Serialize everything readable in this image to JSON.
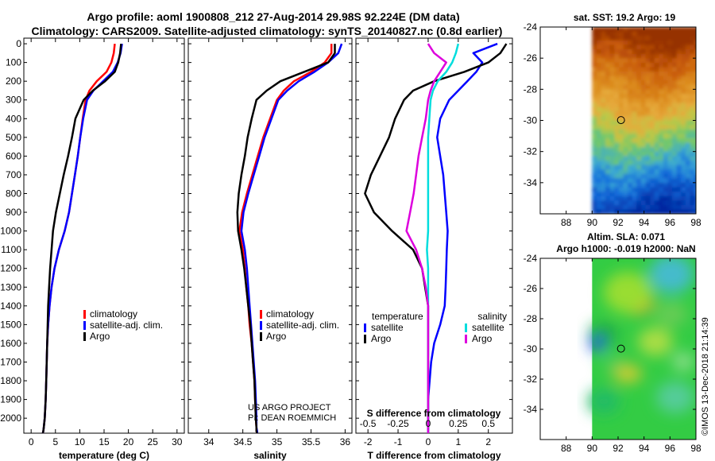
{
  "title": {
    "line1": "Argo profile: aoml 1900808_212 27-Aug-2014 29.98S 92.224E (DM data)",
    "line2": "Climatology: CARS2009. Satellite-adjusted climatology: synTS_20140827.nc (0.8d earlier)"
  },
  "credits": {
    "line1": "US ARGO PROJECT",
    "line2": "PI: DEAN ROEMMICH",
    "imos": "©IMOS 13-Dec-2018 21:14:39"
  },
  "colors": {
    "climatology": "#ff0000",
    "satellite": "#0000ff",
    "argo": "#000000",
    "sat_salinity": "#00dddd",
    "argo_salinity": "#dd00dd"
  },
  "depth_axis": {
    "ticks": [
      0,
      100,
      200,
      300,
      400,
      500,
      600,
      700,
      800,
      900,
      1000,
      1100,
      1200,
      1300,
      1400,
      1500,
      1600,
      1700,
      1800,
      1900,
      2000
    ],
    "range": [
      -30,
      2080
    ]
  },
  "chart_data": [
    {
      "type": "line",
      "id": "temperature",
      "xlabel": "temperature (deg C)",
      "xlim": [
        -1.5,
        31.5
      ],
      "xticks": [
        0,
        5,
        10,
        15,
        20,
        25,
        30
      ],
      "legend": {
        "placement": "lower-middle",
        "items": [
          "climatology",
          "satellite-adj. clim.",
          "Argo"
        ]
      },
      "series": [
        {
          "name": "climatology",
          "color_key": "climatology",
          "x": [
            17.2,
            17.0,
            16.5,
            15.5,
            13.5,
            12.0,
            11.2,
            10.6,
            10.1,
            9.6,
            9.0,
            8.4,
            7.8,
            6.9,
            5.7,
            4.8,
            4.2,
            3.8,
            3.5,
            3.3,
            3.2,
            3.1,
            3.0,
            2.8,
            2.6,
            2.5,
            2.4
          ],
          "y": [
            0,
            50,
            100,
            150,
            200,
            250,
            300,
            400,
            500,
            600,
            700,
            800,
            900,
            1000,
            1100,
            1200,
            1300,
            1400,
            1500,
            1600,
            1700,
            1800,
            1900,
            2000,
            2050,
            2070,
            2080
          ]
        },
        {
          "name": "satellite-adj. clim.",
          "color_key": "satellite",
          "x": [
            18.7,
            18.4,
            17.8,
            16.8,
            14.8,
            12.8,
            11.5,
            10.7,
            10.1,
            9.6,
            9.0,
            8.4,
            7.8,
            6.9,
            5.7,
            4.8,
            4.2,
            3.8,
            3.5,
            3.3,
            3.2,
            3.1,
            3.0,
            2.8,
            2.6,
            2.5,
            2.4
          ],
          "y": [
            0,
            50,
            100,
            150,
            200,
            250,
            300,
            400,
            500,
            600,
            700,
            800,
            900,
            1000,
            1100,
            1200,
            1300,
            1400,
            1500,
            1600,
            1700,
            1800,
            1900,
            2000,
            2050,
            2070,
            2080
          ]
        },
        {
          "name": "Argo",
          "color_key": "argo",
          "x": [
            18.5,
            18.3,
            17.9,
            17.2,
            15.2,
            12.7,
            10.8,
            9.1,
            8.4,
            7.6,
            6.7,
            5.9,
            5.1,
            4.5,
            4.2,
            3.9,
            3.7,
            3.5,
            3.4,
            3.3,
            3.2,
            3.1,
            3.0,
            2.8,
            2.6,
            2.5,
            2.4
          ],
          "y": [
            0,
            50,
            100,
            150,
            200,
            250,
            300,
            400,
            500,
            600,
            700,
            800,
            900,
            1000,
            1100,
            1200,
            1300,
            1400,
            1500,
            1600,
            1700,
            1800,
            1900,
            2000,
            2050,
            2070,
            2080
          ]
        }
      ]
    },
    {
      "type": "line",
      "id": "salinity",
      "xlabel": "salinity",
      "xlim": [
        33.7,
        36.1
      ],
      "xticks": [
        34,
        34.5,
        35,
        35.5,
        36
      ],
      "legend": {
        "placement": "lower-middle",
        "items": [
          "climatology",
          "satellite-adj. clim.",
          "Argo"
        ]
      },
      "series": [
        {
          "name": "climatology",
          "color_key": "climatology",
          "x": [
            35.8,
            35.8,
            35.7,
            35.5,
            35.25,
            35.1,
            35.0,
            34.9,
            34.8,
            34.72,
            34.64,
            34.56,
            34.49,
            34.45,
            34.5,
            34.53,
            34.55,
            34.58,
            34.6,
            34.63,
            34.65,
            34.67,
            34.68,
            34.69,
            34.7,
            34.7,
            34.71
          ],
          "y": [
            0,
            50,
            100,
            150,
            200,
            250,
            300,
            400,
            500,
            600,
            700,
            800,
            900,
            1000,
            1100,
            1200,
            1300,
            1400,
            1500,
            1600,
            1700,
            1800,
            1900,
            2000,
            2050,
            2070,
            2080
          ]
        },
        {
          "name": "satellite-adj. clim.",
          "color_key": "satellite",
          "x": [
            35.95,
            35.9,
            35.75,
            35.55,
            35.32,
            35.15,
            35.02,
            34.92,
            34.82,
            34.74,
            34.66,
            34.58,
            34.51,
            34.48,
            34.53,
            34.56,
            34.58,
            34.6,
            34.62,
            34.64,
            34.66,
            34.68,
            34.69,
            34.7,
            34.7,
            34.71,
            34.71
          ],
          "y": [
            0,
            50,
            100,
            150,
            200,
            250,
            300,
            400,
            500,
            600,
            700,
            800,
            900,
            1000,
            1100,
            1200,
            1300,
            1400,
            1500,
            1600,
            1700,
            1800,
            1900,
            2000,
            2050,
            2070,
            2080
          ]
        },
        {
          "name": "Argo",
          "color_key": "argo",
          "x": [
            35.85,
            35.85,
            35.75,
            35.4,
            35.05,
            34.85,
            34.7,
            34.63,
            34.57,
            34.53,
            34.48,
            34.44,
            34.42,
            34.43,
            34.48,
            34.52,
            34.55,
            34.58,
            34.61,
            34.63,
            34.65,
            34.67,
            34.68,
            34.69,
            34.7,
            34.7,
            34.71
          ],
          "y": [
            0,
            50,
            100,
            150,
            200,
            250,
            300,
            400,
            500,
            600,
            700,
            800,
            900,
            1000,
            1100,
            1200,
            1300,
            1400,
            1500,
            1600,
            1700,
            1800,
            1900,
            2000,
            2050,
            2070,
            2080
          ]
        }
      ]
    },
    {
      "type": "line",
      "id": "difference",
      "xlabel": "T difference from climatology",
      "xlabel_top": "S difference from climatology",
      "xlim": [
        -2.4,
        2.8
      ],
      "xticks": [
        -2,
        -1,
        0,
        1,
        2
      ],
      "xticks_top": [
        -0.5,
        -0.25,
        0,
        0.25,
        0.5
      ],
      "top_scale": 4,
      "legend_left": {
        "heading": "temperature",
        "items": [
          "satellite",
          "Argo"
        ]
      },
      "legend_right": {
        "heading": "salinity",
        "items": [
          "satellite",
          "Argo"
        ]
      },
      "series": [
        {
          "name": "temperature satellite",
          "color_key": "satellite",
          "x": [
            2.3,
            1.5,
            1.8,
            1.6,
            1.3,
            1.0,
            0.7,
            0.4,
            0.3,
            0.4,
            0.5,
            0.55,
            0.6,
            0.65,
            0.62,
            0.6,
            0.58,
            0.55,
            0.4,
            0.2,
            0.1,
            0.05,
            0.0,
            0.0,
            0.0,
            0.0,
            0.0
          ],
          "y": [
            0,
            50,
            100,
            150,
            200,
            250,
            300,
            400,
            500,
            600,
            700,
            800,
            900,
            1000,
            1100,
            1200,
            1300,
            1400,
            1500,
            1600,
            1700,
            1800,
            1900,
            2000,
            2050,
            2070,
            2080
          ]
        },
        {
          "name": "temperature Argo",
          "color_key": "argo",
          "x": [
            2.6,
            2.4,
            2.0,
            1.2,
            0.2,
            -0.5,
            -0.8,
            -1.1,
            -1.3,
            -1.6,
            -1.9,
            -2.1,
            -1.8,
            -1.2,
            -0.5,
            -0.2,
            -0.1,
            0.0,
            0.0,
            0.0,
            0.0,
            0.0,
            0.0,
            0.0,
            0.0,
            0.0,
            0.0
          ],
          "y": [
            0,
            50,
            100,
            150,
            200,
            250,
            300,
            400,
            500,
            600,
            700,
            800,
            900,
            1000,
            1100,
            1200,
            1300,
            1400,
            1500,
            1600,
            1700,
            1800,
            1900,
            2000,
            2050,
            2070,
            2080
          ]
        },
        {
          "name": "salinity satellite",
          "color_key": "sat_salinity",
          "x": [
            0.25,
            0.23,
            0.2,
            0.15,
            0.08,
            0.04,
            0.02,
            0.01,
            0.0,
            0.0,
            0.0,
            0.0,
            0.0,
            0.0,
            -0.01,
            0.0,
            0.0,
            0.0,
            0.0,
            0.0,
            0.0,
            0.0,
            0.0,
            0.0,
            0.0,
            0.0,
            0.0
          ],
          "y": [
            0,
            50,
            100,
            150,
            200,
            250,
            300,
            400,
            500,
            600,
            700,
            800,
            900,
            1000,
            1100,
            1200,
            1300,
            1400,
            1500,
            1600,
            1700,
            1800,
            1900,
            2000,
            2050,
            2070,
            2080
          ]
        },
        {
          "name": "salinity Argo",
          "color_key": "argo_salinity",
          "x": [
            0.0,
            0.05,
            0.15,
            0.1,
            0.05,
            0.02,
            0.0,
            -0.02,
            -0.05,
            -0.08,
            -0.1,
            -0.12,
            -0.15,
            -0.18,
            -0.1,
            -0.05,
            -0.02,
            0.0,
            0.0,
            0.0,
            0.0,
            0.0,
            0.0,
            0.0,
            0.0,
            0.0,
            0.0
          ],
          "y": [
            0,
            50,
            100,
            150,
            200,
            250,
            300,
            400,
            500,
            600,
            700,
            800,
            900,
            1000,
            1100,
            1200,
            1300,
            1400,
            1500,
            1600,
            1700,
            1800,
            1900,
            2000,
            2050,
            2070,
            2080
          ]
        }
      ]
    },
    {
      "type": "heatmap",
      "id": "sst-map",
      "title": "sat. SST: 19.2 Argo: 19",
      "xticks": [
        88,
        90,
        92,
        94,
        96,
        98
      ],
      "yticks": [
        -24,
        -26,
        -28,
        -30,
        -32,
        -34
      ],
      "xlim": [
        86,
        98
      ],
      "ylim": [
        -36,
        -24
      ],
      "data_extent_lon": [
        90,
        98
      ],
      "marker": {
        "lon": 92.224,
        "lat": -29.98
      }
    },
    {
      "type": "heatmap",
      "id": "sla-map",
      "title": "Altim. SLA: 0.071",
      "subtitle": "Argo h1000: -0.019 h2000: NaN",
      "xticks": [
        88,
        90,
        92,
        94,
        96,
        98
      ],
      "yticks": [
        -24,
        -26,
        -28,
        -30,
        -32,
        -34
      ],
      "xlim": [
        86,
        98
      ],
      "ylim": [
        -36,
        -24
      ],
      "data_extent_lon": [
        90,
        98
      ],
      "marker": {
        "lon": 92.224,
        "lat": -29.98
      }
    }
  ]
}
